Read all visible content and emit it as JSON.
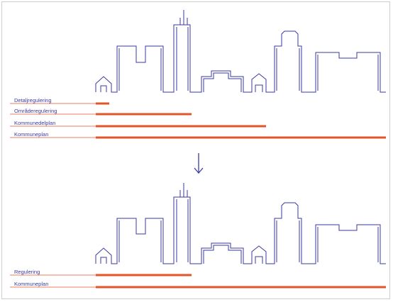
{
  "colors": {
    "skyline": "#3b3aa3",
    "bar": "#e2542a",
    "line": "#e2542a"
  },
  "top_section": {
    "rows": [
      {
        "label": "Detaljregulering"
      },
      {
        "label": "Områderegulering"
      },
      {
        "label": "Kommunedelplan"
      },
      {
        "label": "Kommuneplan"
      }
    ]
  },
  "arrow": {
    "icon": "down-arrow-icon"
  },
  "bottom_section": {
    "rows": [
      {
        "label": "Regulering"
      },
      {
        "label": "Kommuneplan"
      }
    ]
  }
}
